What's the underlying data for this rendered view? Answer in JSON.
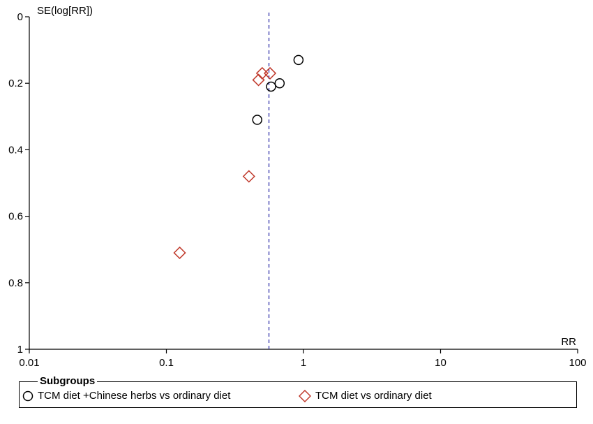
{
  "chart_data": {
    "type": "scatter",
    "title": "",
    "ylabel": "SE(log[RR])",
    "xlabel": "RR",
    "x_scale": "log",
    "xlim": [
      0.01,
      100
    ],
    "ylim": [
      0,
      1
    ],
    "y_inverted": true,
    "x_ticks": [
      "0.01",
      "0.1",
      "1",
      "10",
      "100"
    ],
    "y_ticks": [
      "0",
      "0.2",
      "0.4",
      "0.6",
      "0.8",
      "1"
    ],
    "reference_line": {
      "x": 0.56,
      "style": "dashed",
      "color": "#3333aa"
    },
    "grid": false,
    "legend_title": "Subgroups",
    "legend_position": "bottom",
    "series": [
      {
        "name": "TCM diet +Chinese herbs vs ordinary diet",
        "marker": "circle",
        "color": "#000000",
        "points": [
          {
            "x": 0.92,
            "y": 0.13
          },
          {
            "x": 0.67,
            "y": 0.2
          },
          {
            "x": 0.58,
            "y": 0.21
          },
          {
            "x": 0.46,
            "y": 0.31
          }
        ]
      },
      {
        "name": "TCM diet vs ordinary diet",
        "marker": "diamond",
        "color": "#c0392b",
        "points": [
          {
            "x": 0.5,
            "y": 0.17
          },
          {
            "x": 0.57,
            "y": 0.17
          },
          {
            "x": 0.47,
            "y": 0.19
          },
          {
            "x": 0.4,
            "y": 0.48
          },
          {
            "x": 0.125,
            "y": 0.71
          }
        ]
      }
    ]
  }
}
